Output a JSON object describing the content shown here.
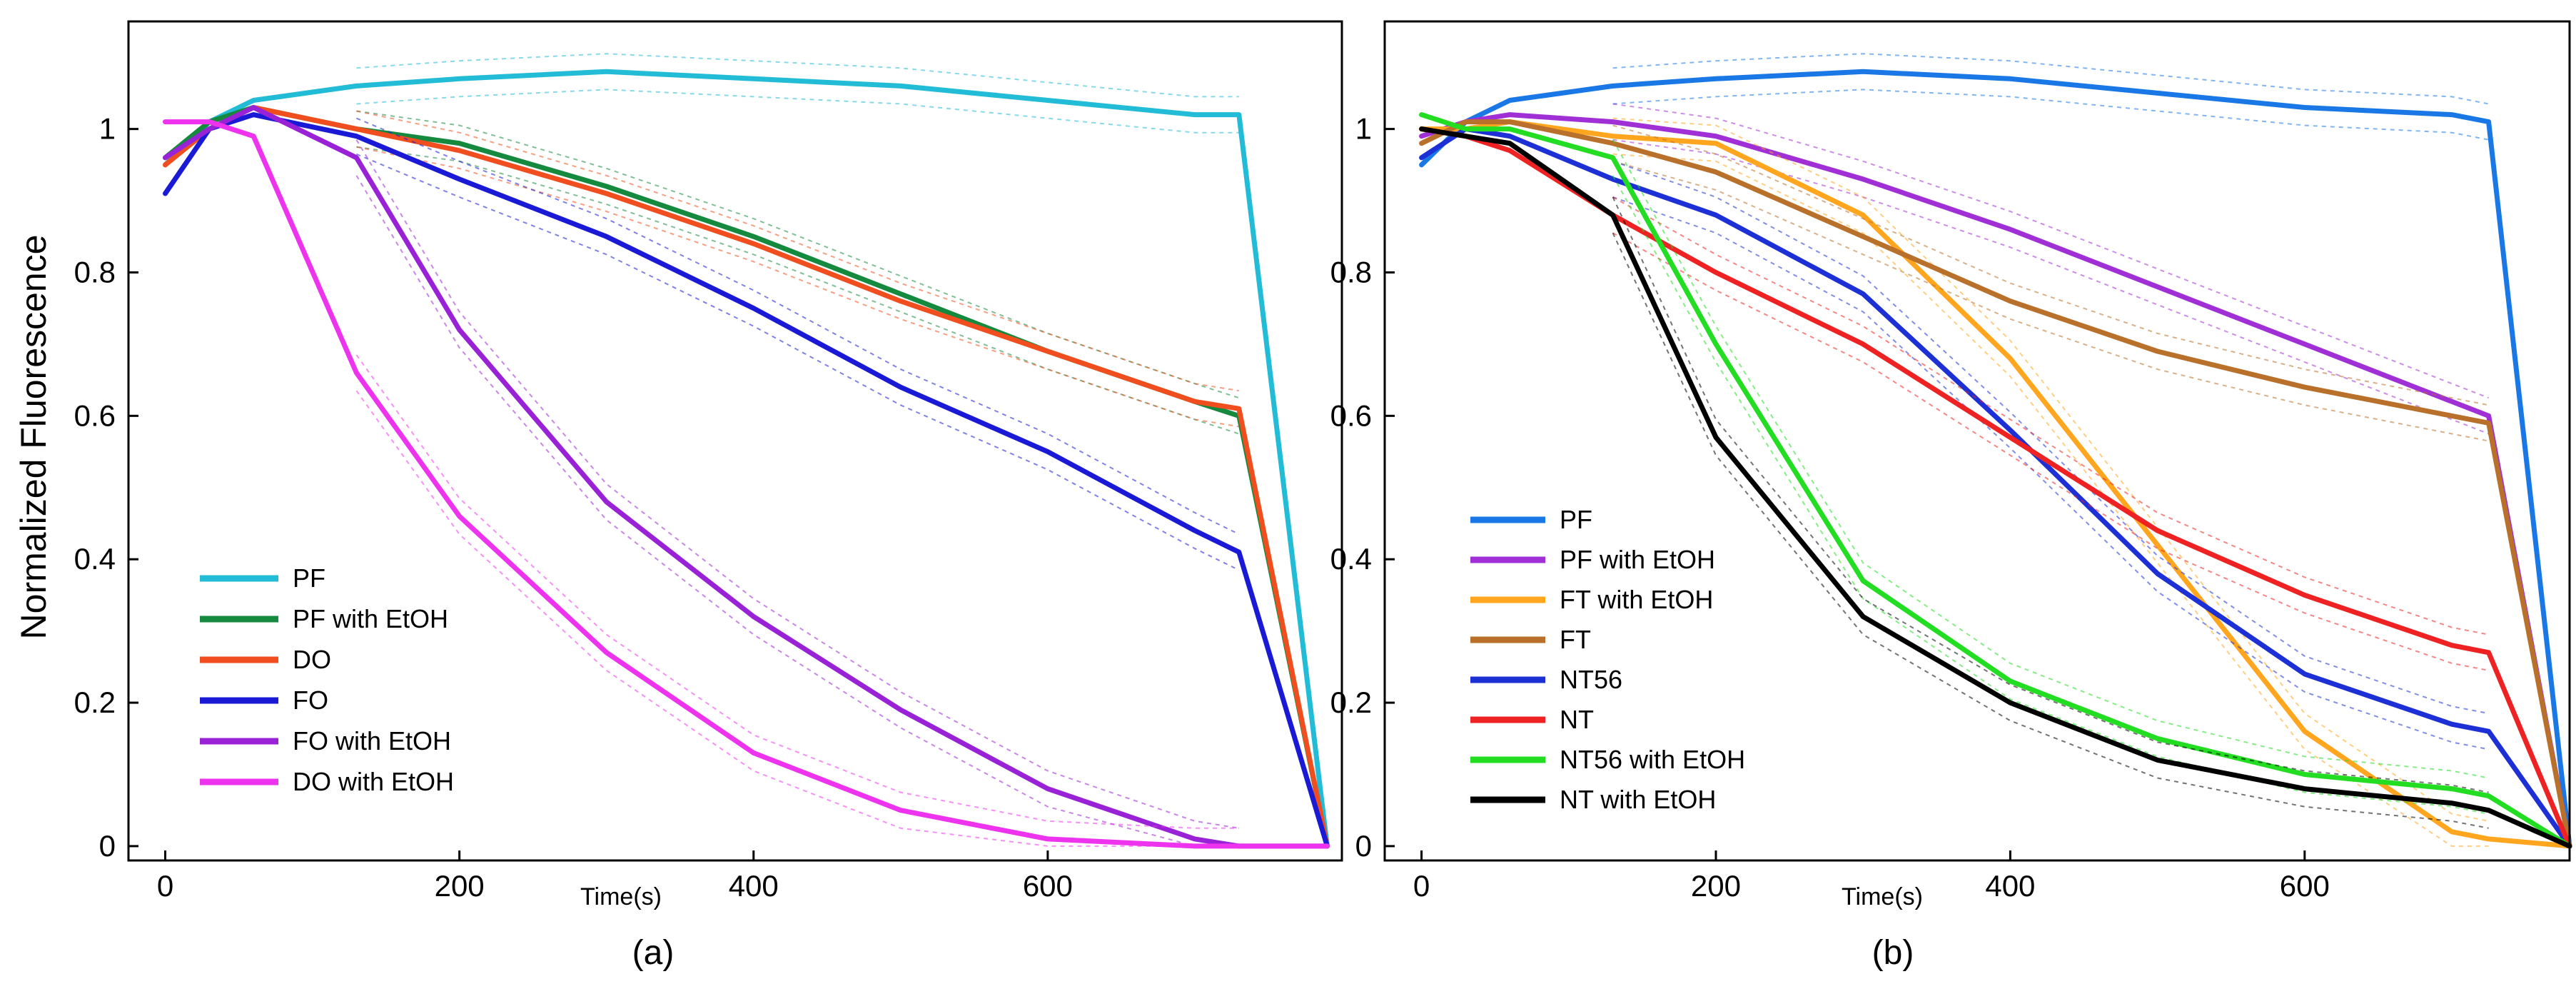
{
  "figure": {
    "ylabel": "Normalized Fluorescence"
  },
  "chart_data": [
    {
      "type": "line",
      "panel_label": "(a)",
      "xlabel": "Time(s)",
      "ylabel": "Normalized Fluorescence",
      "xlim": [
        -25,
        800
      ],
      "ylim": [
        -0.02,
        1.15
      ],
      "xticks": [
        0,
        200,
        400,
        600
      ],
      "yticks": [
        0,
        0.2,
        0.4,
        0.6,
        0.8,
        1
      ],
      "ytick_labels": [
        "0",
        "0.2",
        "0.4",
        "0.6",
        "0.8",
        "1"
      ],
      "legend_position": "bottom-left",
      "series": [
        {
          "name": "PF",
          "color": "#22bcd6",
          "x": [
            0,
            30,
            60,
            130,
            200,
            300,
            400,
            500,
            600,
            700,
            730,
            790
          ],
          "y": [
            0.95,
            1.01,
            1.04,
            1.06,
            1.07,
            1.08,
            1.07,
            1.06,
            1.04,
            1.02,
            1.02,
            0.0
          ]
        },
        {
          "name": "PF with EtOH",
          "color": "#158a3e",
          "x": [
            0,
            30,
            60,
            130,
            200,
            300,
            400,
            500,
            600,
            700,
            730,
            790
          ],
          "y": [
            0.96,
            1.01,
            1.03,
            1.0,
            0.98,
            0.92,
            0.85,
            0.77,
            0.69,
            0.62,
            0.6,
            0.0
          ]
        },
        {
          "name": "DO",
          "color": "#f04e1e",
          "x": [
            0,
            30,
            60,
            130,
            200,
            300,
            400,
            500,
            600,
            700,
            730,
            790
          ],
          "y": [
            0.95,
            1.0,
            1.03,
            1.0,
            0.97,
            0.91,
            0.84,
            0.76,
            0.69,
            0.62,
            0.61,
            0.0
          ]
        },
        {
          "name": "FO",
          "color": "#1a1ad6",
          "x": [
            0,
            30,
            60,
            130,
            200,
            300,
            400,
            500,
            600,
            700,
            730,
            790
          ],
          "y": [
            0.91,
            1.0,
            1.02,
            0.99,
            0.93,
            0.85,
            0.75,
            0.64,
            0.55,
            0.44,
            0.41,
            0.0
          ]
        },
        {
          "name": "FO with EtOH",
          "color": "#9a22d6",
          "x": [
            0,
            30,
            60,
            130,
            200,
            300,
            400,
            500,
            600,
            700,
            730,
            790
          ],
          "y": [
            0.96,
            1.0,
            1.03,
            0.96,
            0.72,
            0.48,
            0.32,
            0.19,
            0.08,
            0.01,
            0.0,
            0.0
          ]
        },
        {
          "name": "DO with EtOH",
          "color": "#ee33ee",
          "x": [
            0,
            30,
            60,
            130,
            200,
            300,
            400,
            500,
            600,
            700,
            730,
            790
          ],
          "y": [
            1.01,
            1.01,
            0.99,
            0.66,
            0.46,
            0.27,
            0.13,
            0.05,
            0.01,
            0.0,
            0.0,
            0.0
          ]
        }
      ]
    },
    {
      "type": "line",
      "panel_label": "(b)",
      "xlabel": "Time(s)",
      "ylabel": "",
      "xlim": [
        -25,
        780
      ],
      "ylim": [
        -0.02,
        1.15
      ],
      "xticks": [
        0,
        200,
        400,
        600
      ],
      "yticks": [
        0,
        0.2,
        0.4,
        0.6,
        0.8,
        1
      ],
      "ytick_labels": [
        "0",
        "0.2",
        "0.4",
        "0.6",
        "0.8",
        "1"
      ],
      "legend_position": "bottom-left",
      "series": [
        {
          "name": "PF",
          "color": "#1a78e6",
          "x": [
            0,
            30,
            60,
            130,
            200,
            300,
            400,
            500,
            600,
            700,
            725,
            780
          ],
          "y": [
            0.95,
            1.01,
            1.04,
            1.06,
            1.07,
            1.08,
            1.07,
            1.05,
            1.03,
            1.02,
            1.01,
            0.0
          ]
        },
        {
          "name": "PF with EtOH",
          "color": "#a030d6",
          "x": [
            0,
            30,
            60,
            130,
            200,
            300,
            400,
            500,
            600,
            700,
            725,
            780
          ],
          "y": [
            0.99,
            1.01,
            1.02,
            1.01,
            0.99,
            0.93,
            0.86,
            0.78,
            0.7,
            0.62,
            0.6,
            0.0
          ]
        },
        {
          "name": "FT with EtOH",
          "color": "#ffa61e",
          "x": [
            0,
            30,
            60,
            130,
            200,
            300,
            400,
            500,
            600,
            700,
            725,
            780
          ],
          "y": [
            1.0,
            1.0,
            1.01,
            0.99,
            0.98,
            0.88,
            0.68,
            0.42,
            0.16,
            0.02,
            0.01,
            0.0
          ]
        },
        {
          "name": "FT",
          "color": "#b8702a",
          "x": [
            0,
            30,
            60,
            130,
            200,
            300,
            400,
            500,
            600,
            700,
            725,
            780
          ],
          "y": [
            0.98,
            1.01,
            1.01,
            0.98,
            0.94,
            0.85,
            0.76,
            0.69,
            0.64,
            0.6,
            0.59,
            0.0
          ]
        },
        {
          "name": "NT56",
          "color": "#1c30d6",
          "x": [
            0,
            30,
            60,
            130,
            200,
            300,
            400,
            500,
            600,
            700,
            725,
            780
          ],
          "y": [
            0.96,
            1.0,
            0.99,
            0.93,
            0.88,
            0.77,
            0.58,
            0.38,
            0.24,
            0.17,
            0.16,
            0.0
          ]
        },
        {
          "name": "NT",
          "color": "#ee2222",
          "x": [
            0,
            30,
            60,
            130,
            200,
            300,
            400,
            500,
            600,
            700,
            725,
            780
          ],
          "y": [
            1.0,
            0.99,
            0.97,
            0.88,
            0.8,
            0.7,
            0.57,
            0.44,
            0.35,
            0.28,
            0.27,
            0.0
          ]
        },
        {
          "name": "NT56 with EtOH",
          "color": "#22dd22",
          "x": [
            0,
            30,
            60,
            130,
            200,
            300,
            400,
            500,
            600,
            700,
            725,
            780
          ],
          "y": [
            1.02,
            1.0,
            1.0,
            0.96,
            0.7,
            0.37,
            0.23,
            0.15,
            0.1,
            0.08,
            0.07,
            0.0
          ]
        },
        {
          "name": "NT with EtOH",
          "color": "#000000",
          "x": [
            0,
            30,
            60,
            130,
            200,
            300,
            400,
            500,
            600,
            700,
            725,
            780
          ],
          "y": [
            1.0,
            0.99,
            0.98,
            0.88,
            0.57,
            0.32,
            0.2,
            0.12,
            0.08,
            0.06,
            0.05,
            0.0
          ]
        }
      ]
    }
  ]
}
